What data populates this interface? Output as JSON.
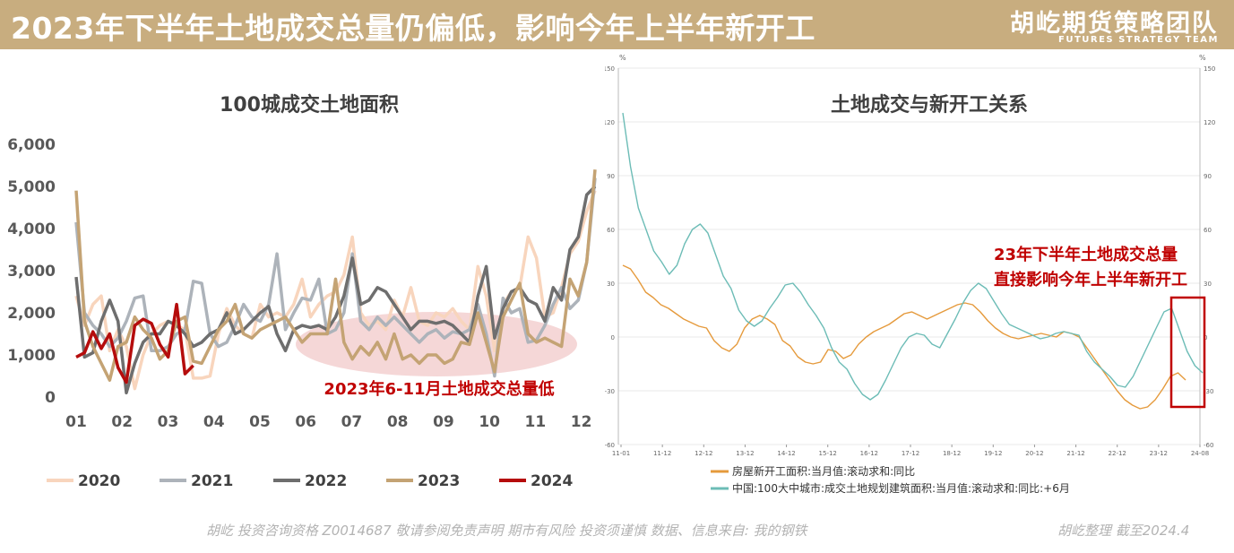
{
  "header": {
    "title": "2023年下半年土地成交总量仍偏低，影响今年上半年新开工",
    "brand_main": "胡屹期货策略团队",
    "brand_sub": "FUTURES STRATEGY TEAM"
  },
  "footer": {
    "left": "胡屹 投资咨询资格 Z0014687  敬请参阅免责声明    期市有风险  投资须谨慎 数据、信息来自: 我的钢铁",
    "right": "胡屹整理 截至2024.4"
  },
  "colors": {
    "header_bg": "#c8ad7f",
    "s2020": "#f8d5bd",
    "s2021": "#adb3ba",
    "s2022": "#6e6e6e",
    "s2023": "#c4a374",
    "s2024": "#b50c0c",
    "housing": "#e59a3c",
    "land": "#6cbcb6",
    "highlight": "#c00000"
  },
  "chart_data": [
    {
      "type": "line",
      "title": "100城成交土地面积",
      "yticks": [
        "0",
        "1,000",
        "2,000",
        "3,000",
        "4,000",
        "5,000",
        "6,000"
      ],
      "xticks": [
        "01",
        "02",
        "03",
        "04",
        "05",
        "06",
        "07",
        "08",
        "09",
        "10",
        "11",
        "12"
      ],
      "ylim": [
        0,
        6000
      ],
      "grid": false,
      "legend_position": "bottom",
      "annotation": "2023年6-11月土地成交总量低",
      "series": [
        {
          "name": "2020",
          "values": [
            2400,
            1700,
            2200,
            2400,
            1100,
            1600,
            1200,
            200,
            1000,
            1500,
            1700,
            1800,
            1700,
            1600,
            450,
            450,
            500,
            1500,
            2100,
            1700,
            1500,
            1400,
            2200,
            1900,
            2000,
            1900,
            2200,
            2800,
            1900,
            2200,
            2400,
            2500,
            2900,
            3800,
            2000,
            1700,
            1800,
            1600,
            2300,
            1900,
            2600,
            1800,
            1700,
            2000,
            1900,
            2100,
            1800,
            1600,
            3100,
            2400,
            1100,
            2200,
            2500,
            2600,
            3800,
            3300,
            1900,
            2000,
            2600,
            3400,
            3700,
            4400,
            4900
          ]
        },
        {
          "name": "2021",
          "values": [
            4150,
            2000,
            1700,
            1500,
            1200,
            1400,
            1800,
            2350,
            2400,
            1100,
            1100,
            1200,
            1500,
            1600,
            2750,
            2700,
            1500,
            1200,
            1300,
            1700,
            2200,
            1900,
            1800,
            2200,
            3400,
            1600,
            2000,
            2350,
            2300,
            2800,
            1500,
            1600,
            2000,
            3400,
            1800,
            1600,
            1900,
            1700,
            1900,
            1700,
            1500,
            1300,
            1500,
            1600,
            1400,
            1550,
            1500,
            1600,
            2200,
            1500,
            500,
            2350,
            2000,
            2100,
            1300,
            1350,
            1700,
            2200,
            2600,
            2100,
            2300,
            3200,
            5200
          ]
        },
        {
          "name": "2022",
          "values": [
            2850,
            950,
            1050,
            1800,
            2300,
            1800,
            100,
            800,
            1300,
            1500,
            1500,
            1800,
            1700,
            1500,
            1200,
            1300,
            1500,
            1600,
            2000,
            1500,
            1600,
            1800,
            2000,
            2150,
            1500,
            1100,
            1600,
            1700,
            1650,
            1700,
            1600,
            1900,
            2400,
            3300,
            2200,
            2300,
            2600,
            2500,
            2200,
            1900,
            1600,
            1800,
            1800,
            1750,
            1800,
            1700,
            1500,
            1300,
            2400,
            3100,
            1400,
            2100,
            2500,
            2600,
            2300,
            2200,
            1800,
            2600,
            2300,
            3500,
            3800,
            4800,
            5000
          ]
        },
        {
          "name": "2023",
          "values": [
            4900,
            1800,
            1200,
            800,
            400,
            1200,
            1300,
            1900,
            1600,
            1400,
            900,
            1100,
            1800,
            1900,
            850,
            800,
            1200,
            1600,
            1800,
            2200,
            1500,
            1400,
            1600,
            1700,
            1800,
            1900,
            1600,
            1300,
            1500,
            1500,
            1500,
            2800,
            1300,
            900,
            1200,
            1000,
            1300,
            900,
            1500,
            900,
            1000,
            800,
            1000,
            1000,
            800,
            900,
            1300,
            1250,
            2000,
            1300,
            600,
            1900,
            2300,
            2700,
            1500,
            1300,
            1400,
            1300,
            1200,
            2800,
            2400,
            3200,
            5400
          ]
        },
        {
          "name": "2024",
          "values": [
            950,
            1050,
            1550,
            1150,
            1500,
            700,
            350,
            1700,
            1850,
            1750,
            1250,
            950,
            2200,
            550,
            750
          ]
        }
      ]
    },
    {
      "type": "line",
      "title": "土地成交与新开工关系",
      "y_unit_left": "%",
      "y_unit_right": "%",
      "yticks": [
        "150",
        "120",
        "90",
        "60",
        "30",
        "0",
        "-30",
        "-60"
      ],
      "ylim": [
        -60,
        150
      ],
      "xticks": [
        "11-01",
        "11-12",
        "12-12",
        "13-12",
        "14-12",
        "15-12",
        "16-12",
        "17-12",
        "18-12",
        "19-12",
        "20-12",
        "21-12",
        "22-12",
        "23-12",
        "24-08"
      ],
      "annotation": [
        "23年下半年土地成交总量",
        "直接影响今年上半年新开工"
      ],
      "series": [
        {
          "name": "房屋新开工面积:当月值:滚动求和:同比",
          "y": [
            40,
            38,
            32,
            25,
            22,
            18,
            16,
            13,
            10,
            8,
            6,
            5,
            -2,
            -6,
            -8,
            -4,
            5,
            10,
            12,
            10,
            7,
            -2,
            -5,
            -11,
            -14,
            -15,
            -14,
            -7,
            -8,
            -12,
            -10,
            -4,
            0,
            3,
            5,
            7,
            10,
            13,
            14,
            12,
            10,
            12,
            14,
            16,
            18,
            19,
            18,
            14,
            9,
            5,
            2,
            0,
            -1,
            0,
            1,
            2,
            1,
            0,
            3,
            2,
            0,
            -6,
            -12,
            -18,
            -24,
            -30,
            -35,
            -38,
            -40,
            -39,
            -35,
            -29,
            -22,
            -20,
            -24
          ]
        },
        {
          "name": "中国:100大中城市:成交土地规划建筑面积:当月值:滚动求和:同比:+6月",
          "y": [
            125,
            95,
            72,
            60,
            48,
            42,
            35,
            40,
            52,
            60,
            63,
            58,
            46,
            34,
            27,
            15,
            9,
            6,
            9,
            16,
            22,
            29,
            30,
            25,
            18,
            12,
            5,
            -6,
            -14,
            -18,
            -26,
            -32,
            -35,
            -32,
            -24,
            -15,
            -6,
            0,
            2,
            1,
            -4,
            -6,
            2,
            10,
            19,
            26,
            30,
            27,
            20,
            13,
            7,
            5,
            3,
            1,
            -1,
            0,
            2,
            3,
            2,
            1,
            -8,
            -14,
            -18,
            -22,
            -27,
            -28,
            -22,
            -13,
            -4,
            5,
            14,
            16,
            4,
            -8,
            -16,
            -20
          ]
        }
      ]
    }
  ]
}
